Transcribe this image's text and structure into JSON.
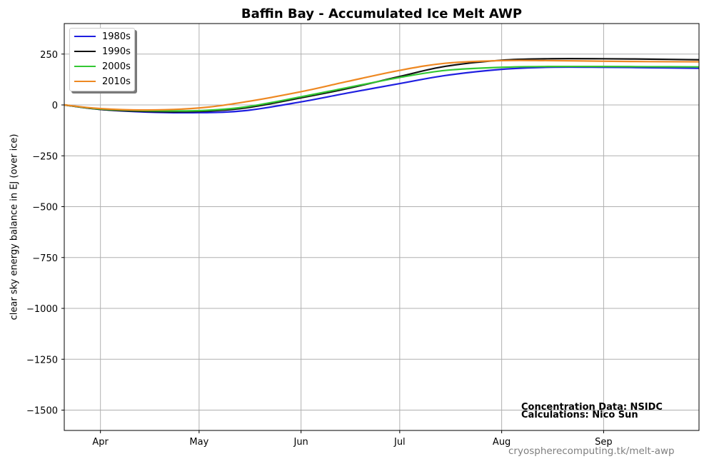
{
  "chart_data": {
    "type": "line",
    "title": "Baffin Bay - Accumulated Ice Melt AWP",
    "xlabel": "",
    "ylabel": "clear sky energy balance in  EJ (over ice)",
    "xlim": [
      "03-21",
      "09-30"
    ],
    "ylim": [
      -1600,
      400
    ],
    "xticks": [
      {
        "date": "04-01",
        "label": "Apr"
      },
      {
        "date": "05-01",
        "label": "May"
      },
      {
        "date": "06-01",
        "label": "Jun"
      },
      {
        "date": "07-01",
        "label": "Jul"
      },
      {
        "date": "08-01",
        "label": "Aug"
      },
      {
        "date": "09-01",
        "label": "Sep"
      }
    ],
    "yticks": [
      {
        "value": 250,
        "label": "250"
      },
      {
        "value": 0,
        "label": "0"
      },
      {
        "value": -250,
        "label": "−250"
      },
      {
        "value": -500,
        "label": "−500"
      },
      {
        "value": -750,
        "label": "−750"
      },
      {
        "value": -1000,
        "label": "−1000"
      },
      {
        "value": -1250,
        "label": "−1250"
      },
      {
        "value": -1500,
        "label": "−1500"
      }
    ],
    "grid": true,
    "legend_position": "top-left",
    "series": [
      {
        "name": "1980s",
        "color": "#1f1fe0",
        "x": [
          "03-21",
          "04-01",
          "04-15",
          "05-01",
          "05-15",
          "06-01",
          "06-15",
          "07-01",
          "07-15",
          "08-01",
          "08-15",
          "09-01",
          "09-15",
          "09-30"
        ],
        "y": [
          0,
          -22,
          -35,
          -38,
          -28,
          15,
          58,
          105,
          145,
          175,
          185,
          185,
          183,
          180
        ]
      },
      {
        "name": "1990s",
        "color": "#111111",
        "x": [
          "03-21",
          "04-01",
          "04-15",
          "05-01",
          "05-15",
          "06-01",
          "06-15",
          "07-01",
          "07-15",
          "08-01",
          "08-15",
          "09-01",
          "09-15",
          "09-30"
        ],
        "y": [
          0,
          -22,
          -32,
          -32,
          -15,
          35,
          80,
          140,
          190,
          220,
          227,
          227,
          225,
          222
        ]
      },
      {
        "name": "2000s",
        "color": "#33c733",
        "x": [
          "03-21",
          "04-01",
          "04-15",
          "05-01",
          "05-15",
          "06-01",
          "06-15",
          "07-01",
          "07-15",
          "08-01",
          "08-15",
          "09-01",
          "09-15",
          "09-30"
        ],
        "y": [
          0,
          -20,
          -28,
          -28,
          -10,
          40,
          85,
          135,
          170,
          185,
          189,
          189,
          188,
          187
        ]
      },
      {
        "name": "2010s",
        "color": "#ee8822",
        "x": [
          "03-21",
          "04-01",
          "04-15",
          "05-01",
          "05-15",
          "06-01",
          "06-15",
          "07-01",
          "07-15",
          "08-01",
          "08-15",
          "09-01",
          "09-15",
          "09-30"
        ],
        "y": [
          0,
          -18,
          -25,
          -15,
          15,
          65,
          115,
          170,
          205,
          218,
          218,
          215,
          213,
          212
        ]
      }
    ],
    "annotations": [
      {
        "text": "Concentration Data: NSIDC"
      },
      {
        "text": "Calculations: Nico Sun"
      },
      {
        "text": "cryospherecomputing.tk/melt-awp"
      }
    ]
  }
}
